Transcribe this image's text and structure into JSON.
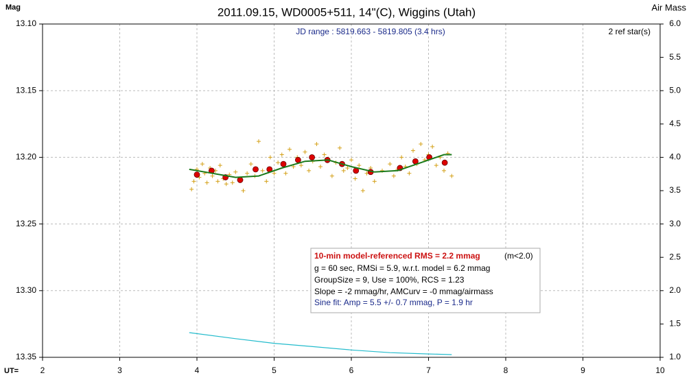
{
  "chart_data": {
    "type": "scatter",
    "title": "2011.09.15, WD0005+511, 14\"(C), Wiggins (Utah)",
    "y_label": "Mag",
    "y2_label": "Air Mass",
    "x_label": "UT=",
    "annotations": [
      "JD range : 5819.663 - 5819.805 (3.4 hrs)",
      "2 ref star(s)"
    ],
    "info_box": {
      "lines": [
        "10-min model-referenced RMS = 2.2 mmag",
        "(m<2.0)",
        "g = 60 sec, RMSi = 5.9, w.r.t. model = 6.2 mmag",
        "GroupSize = 9, Use = 100%, RCS = 1.23",
        "Slope = -2 mmag/hr, AMCurv = -0 mmag/airmass",
        "Sine fit: Amp = 5.5 +/- 0.7 mmag, P = 1.9 hr"
      ]
    },
    "xlim": [
      2,
      10
    ],
    "xticks": [
      2,
      3,
      4,
      5,
      6,
      7,
      8,
      9,
      10
    ],
    "ylim": [
      13.35,
      13.1
    ],
    "yticks": [
      {
        "value": 13.1,
        "label": "13.10"
      },
      {
        "value": 13.15,
        "label": "13.15"
      },
      {
        "value": 13.2,
        "label": "13.20"
      },
      {
        "value": 13.25,
        "label": "13.25"
      },
      {
        "value": 13.3,
        "label": "13.30"
      },
      {
        "value": 13.35,
        "label": "13.35"
      }
    ],
    "y2lim": [
      1,
      6
    ],
    "y2ticks": [
      {
        "value": 1,
        "label": "1.0"
      },
      {
        "value": 1.5,
        "label": "1.5"
      },
      {
        "value": 2,
        "label": "2.0"
      },
      {
        "value": 2.5,
        "label": "2.5"
      },
      {
        "value": 3,
        "label": "3.0"
      },
      {
        "value": 3.5,
        "label": "3.5"
      },
      {
        "value": 4,
        "label": "4.0"
      },
      {
        "value": 4.5,
        "label": "4.5"
      },
      {
        "value": 5,
        "label": "5.0"
      },
      {
        "value": 5.5,
        "label": "5.5"
      },
      {
        "value": 6,
        "label": "6.0"
      }
    ],
    "grid": true,
    "series": [
      {
        "type": "cross",
        "color": "#d4a017",
        "x": [
          3.93,
          3.96,
          4.0,
          4.03,
          4.07,
          4.1,
          4.13,
          4.17,
          4.2,
          4.24,
          4.27,
          4.3,
          4.34,
          4.38,
          4.42,
          4.46,
          4.5,
          4.55,
          4.6,
          4.65,
          4.7,
          4.75,
          4.8,
          4.85,
          4.9,
          4.95,
          5.0,
          5.05,
          5.1,
          5.15,
          5.2,
          5.25,
          5.3,
          5.35,
          5.4,
          5.45,
          5.5,
          5.55,
          5.6,
          5.65,
          5.7,
          5.75,
          5.8,
          5.85,
          5.9,
          5.95,
          6.0,
          6.05,
          6.1,
          6.15,
          6.2,
          6.25,
          6.3,
          6.4,
          6.5,
          6.55,
          6.6,
          6.65,
          6.7,
          6.75,
          6.8,
          6.85,
          6.9,
          6.95,
          7.0,
          7.05,
          7.1,
          7.15,
          7.2,
          7.25,
          7.3
        ],
        "values": [
          13.224,
          13.218,
          13.209,
          13.215,
          13.205,
          13.212,
          13.219,
          13.208,
          13.214,
          13.21,
          13.218,
          13.206,
          13.216,
          13.22,
          13.213,
          13.219,
          13.211,
          13.216,
          13.225,
          13.212,
          13.205,
          13.214,
          13.188,
          13.21,
          13.218,
          13.2,
          13.212,
          13.204,
          13.198,
          13.212,
          13.194,
          13.207,
          13.2,
          13.206,
          13.196,
          13.21,
          13.203,
          13.19,
          13.207,
          13.198,
          13.201,
          13.214,
          13.204,
          13.193,
          13.21,
          13.208,
          13.202,
          13.216,
          13.206,
          13.225,
          13.212,
          13.208,
          13.218,
          13.21,
          13.205,
          13.214,
          13.209,
          13.2,
          13.207,
          13.212,
          13.195,
          13.205,
          13.19,
          13.202,
          13.198,
          13.192,
          13.206,
          13.2,
          13.21,
          13.197,
          13.214
        ]
      },
      {
        "type": "dot",
        "color": "#dd0000",
        "x": [
          4.0,
          4.19,
          4.37,
          4.56,
          4.76,
          4.94,
          5.12,
          5.31,
          5.49,
          5.69,
          5.88,
          6.06,
          6.25,
          6.63,
          6.83,
          7.01,
          7.21
        ],
        "values": [
          13.213,
          13.21,
          13.215,
          13.217,
          13.209,
          13.209,
          13.205,
          13.202,
          13.2,
          13.202,
          13.205,
          13.21,
          13.211,
          13.208,
          13.203,
          13.2,
          13.204
        ]
      },
      {
        "type": "line",
        "color": "#1a7a1a",
        "x": [
          3.9,
          4.2,
          4.5,
          4.8,
          5.1,
          5.4,
          5.7,
          6.0,
          6.3,
          6.6,
          6.9,
          7.2,
          7.3
        ],
        "values": [
          13.209,
          13.212,
          13.215,
          13.214,
          13.208,
          13.203,
          13.202,
          13.207,
          13.211,
          13.21,
          13.204,
          13.198,
          13.198
        ]
      },
      {
        "type": "line",
        "color": "#22bbcc",
        "axis": "y2",
        "x": [
          3.9,
          4.5,
          5.0,
          5.5,
          6.0,
          6.5,
          7.0,
          7.3
        ],
        "values": [
          1.37,
          1.28,
          1.21,
          1.16,
          1.11,
          1.07,
          1.05,
          1.04
        ]
      }
    ]
  }
}
